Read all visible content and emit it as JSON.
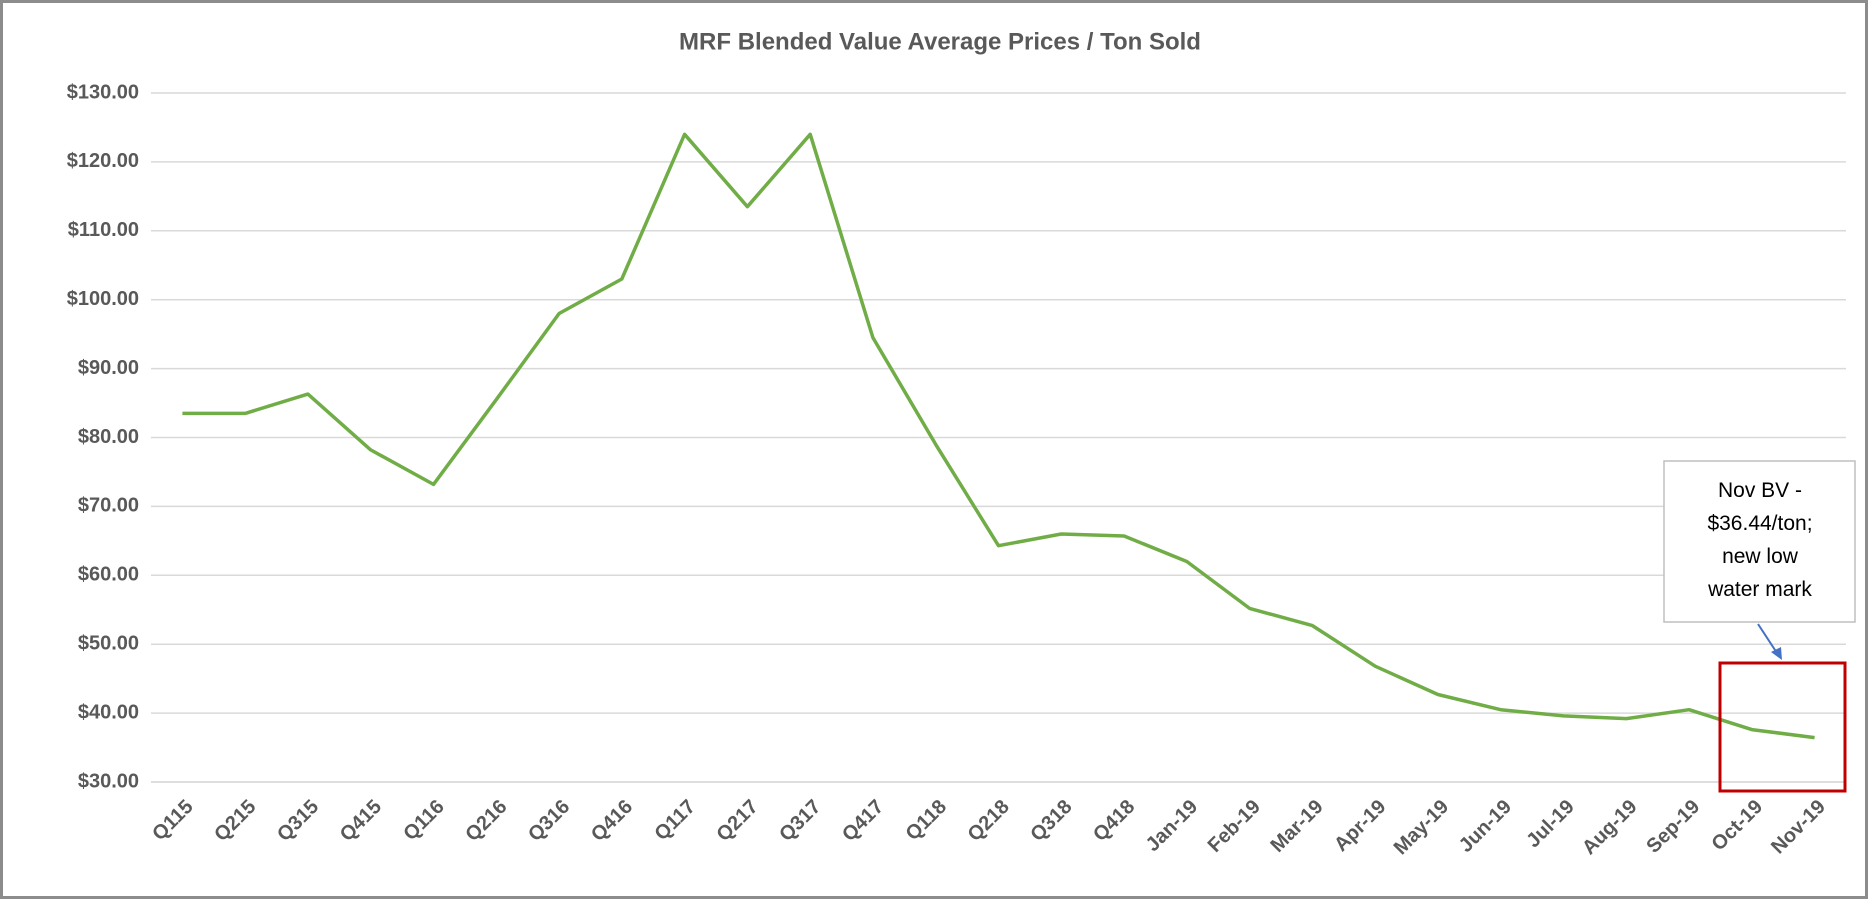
{
  "chart_data": {
    "type": "line",
    "title": "MRF Blended Value Average Prices  / Ton  Sold",
    "categories": [
      "Q115",
      "Q215",
      "Q315",
      "Q415",
      "Q116",
      "Q216",
      "Q316",
      "Q416",
      "Q117",
      "Q217",
      "Q317",
      "Q417",
      "Q118",
      "Q218",
      "Q318",
      "Q418",
      "Jan-19",
      "Feb-19",
      "Mar-19",
      "Apr-19",
      "May-19",
      "Jun-19",
      "Jul-19",
      "Aug-19",
      "Sep-19",
      "Oct-19",
      "Nov-19"
    ],
    "values": [
      83.5,
      83.5,
      86.3,
      78.2,
      73.2,
      85.5,
      98,
      103,
      124,
      113.5,
      124,
      94.5,
      79,
      64.3,
      66,
      65.7,
      62,
      55.2,
      52.7,
      46.8,
      42.7,
      40.5,
      39.6,
      39.2,
      40.5,
      37.6,
      36.44
    ],
    "color": "#70ad47",
    "ylim": [
      30,
      130
    ],
    "yticks": [
      {
        "value": 30,
        "label": "$30.00"
      },
      {
        "value": 40,
        "label": "$40.00"
      },
      {
        "value": 50,
        "label": "$50.00"
      },
      {
        "value": 60,
        "label": "$60.00"
      },
      {
        "value": 70,
        "label": "$70.00"
      },
      {
        "value": 80,
        "label": "$80.00"
      },
      {
        "value": 90,
        "label": "$90.00"
      },
      {
        "value": 100,
        "label": "$100.00"
      },
      {
        "value": 110,
        "label": "$110.00"
      },
      {
        "value": 120,
        "label": "$120.00"
      },
      {
        "value": 130,
        "label": "$130.00"
      }
    ],
    "grid": true,
    "annotation": {
      "lines": [
        "Nov BV -",
        "$36.44/ton;",
        "new low",
        "water mark"
      ]
    }
  }
}
